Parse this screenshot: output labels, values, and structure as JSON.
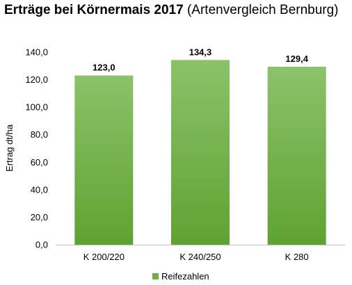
{
  "chart_data": {
    "type": "bar",
    "title": "Erträge bei Körnermais 2017",
    "subtitle": "(Artenvergleich Bernburg)",
    "xlabel": "",
    "ylabel": "Ertrag dt/ha",
    "categories": [
      "K 200/220",
      "K 240/250",
      "K 280"
    ],
    "series": [
      {
        "name": "Reifezahlen",
        "values": [
          123.0,
          134.3,
          129.4
        ],
        "color": "#70ad47"
      }
    ],
    "data_labels": [
      "123,0",
      "134,3",
      "129,4"
    ],
    "ylim": [
      0,
      140
    ],
    "yticks": [
      0,
      20,
      40,
      60,
      80,
      100,
      120,
      140
    ],
    "ytick_labels": [
      "0,0",
      "20,0",
      "40,0",
      "60,0",
      "80,0",
      "100,0",
      "120,0",
      "140,0"
    ],
    "grid": false,
    "legend": "bottom"
  }
}
